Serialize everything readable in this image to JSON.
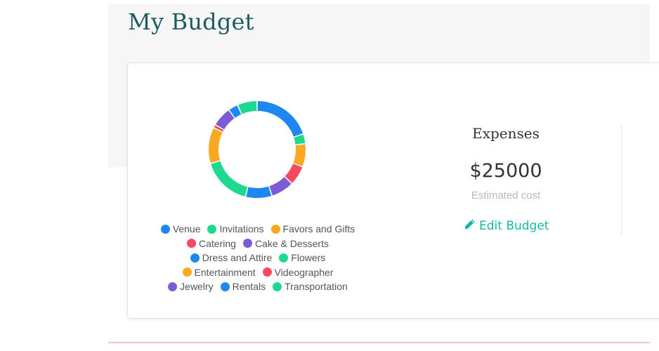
{
  "page": {
    "title": "My Budget"
  },
  "colors": {
    "blue": "#1e88f0",
    "green": "#1fd88f",
    "orange": "#f9a822",
    "red": "#f54a61",
    "purple": "#7c5cd6",
    "title": "#1f5a60",
    "link": "#16b6a8"
  },
  "chart_data": {
    "type": "pie",
    "variant": "donut",
    "categories": [
      "Venue",
      "Invitations",
      "Favors and Gifts",
      "Catering",
      "Cake & Desserts",
      "Dress and Attire",
      "Flowers",
      "Entertainment",
      "Videographer",
      "Jewelry",
      "Rentals",
      "Transportation"
    ],
    "values": [
      18,
      3,
      7,
      6,
      7,
      8,
      15,
      11,
      1,
      6,
      3,
      6
    ],
    "colors": [
      "#1e88f0",
      "#1fd88f",
      "#f9a822",
      "#f54a61",
      "#7c5cd6",
      "#1e88f0",
      "#1fd88f",
      "#f9a822",
      "#f54a61",
      "#7c5cd6",
      "#1e88f0",
      "#1fd88f"
    ],
    "title": "",
    "legend_position": "bottom"
  },
  "legend_rows": [
    [
      0,
      1,
      2
    ],
    [
      3,
      4
    ],
    [
      5,
      6
    ],
    [
      7,
      8
    ],
    [
      9,
      10,
      11
    ]
  ],
  "expenses": {
    "title": "Expenses",
    "amount": "$25000",
    "subtitle": "Estimated cost",
    "edit_label": "Edit Budget",
    "edit_icon": "pencil-icon"
  }
}
